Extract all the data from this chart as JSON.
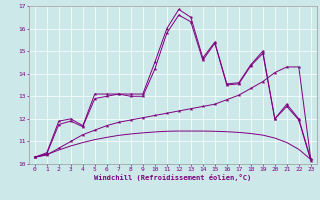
{
  "xlabel": "Windchill (Refroidissement éolien,°C)",
  "background_color": "#cce8e8",
  "line_color": "#800080",
  "x": [
    0,
    1,
    2,
    3,
    4,
    5,
    6,
    7,
    8,
    9,
    10,
    11,
    12,
    13,
    14,
    15,
    16,
    17,
    18,
    19,
    20,
    21,
    22,
    23
  ],
  "line1": [
    10.3,
    10.5,
    11.9,
    12.0,
    11.7,
    13.1,
    13.1,
    13.1,
    13.1,
    13.1,
    14.5,
    16.0,
    16.85,
    16.5,
    14.7,
    15.4,
    13.55,
    13.6,
    14.4,
    15.0,
    12.0,
    12.65,
    12.0,
    10.2
  ],
  "line2": [
    10.3,
    10.45,
    11.75,
    11.9,
    11.65,
    12.9,
    13.0,
    13.1,
    13.0,
    13.0,
    14.2,
    15.8,
    16.6,
    16.3,
    14.6,
    15.35,
    13.5,
    13.55,
    14.35,
    14.9,
    12.0,
    12.55,
    11.95,
    10.15
  ],
  "line3": [
    10.3,
    10.4,
    10.7,
    11.0,
    11.3,
    11.5,
    11.7,
    11.85,
    11.95,
    12.05,
    12.15,
    12.25,
    12.35,
    12.45,
    12.55,
    12.65,
    12.85,
    13.05,
    13.35,
    13.65,
    14.05,
    14.3,
    14.3,
    10.2
  ],
  "line4": [
    10.3,
    10.42,
    10.62,
    10.8,
    10.95,
    11.08,
    11.18,
    11.27,
    11.33,
    11.38,
    11.42,
    11.45,
    11.46,
    11.46,
    11.46,
    11.45,
    11.43,
    11.4,
    11.35,
    11.28,
    11.15,
    10.95,
    10.65,
    10.2
  ],
  "ylim": [
    10,
    17
  ],
  "yticks": [
    10,
    11,
    12,
    13,
    14,
    15,
    16,
    17
  ],
  "xticks": [
    0,
    1,
    2,
    3,
    4,
    5,
    6,
    7,
    8,
    9,
    10,
    11,
    12,
    13,
    14,
    15,
    16,
    17,
    18,
    19,
    20,
    21,
    22,
    23
  ]
}
